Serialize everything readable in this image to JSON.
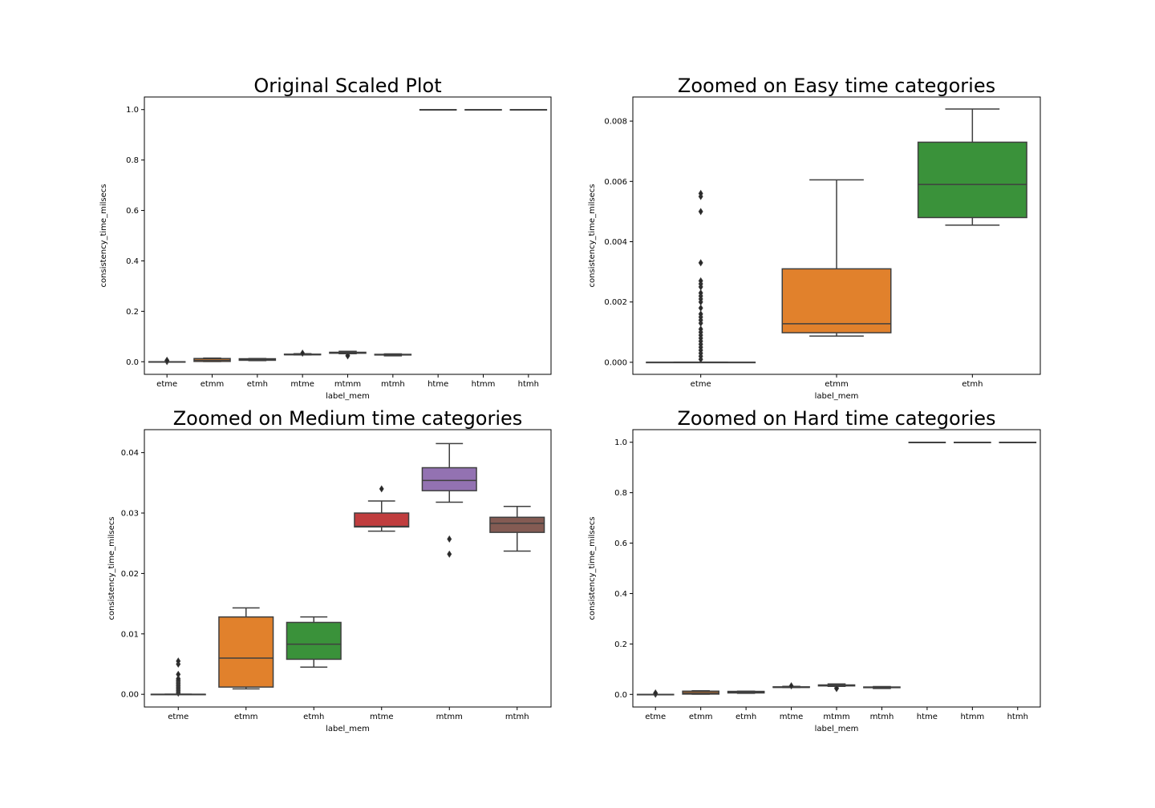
{
  "chart_data": [
    {
      "type": "box",
      "title": "Original Scaled Plot",
      "xlabel": "label_mem",
      "ylabel": "consistency_time_milsecs",
      "ylim": [
        -0.05,
        1.05
      ],
      "yticks": [
        "0.0",
        "0.2",
        "0.4",
        "0.6",
        "0.8",
        "1.0"
      ],
      "categories": [
        "etme",
        "etmm",
        "etmh",
        "mtme",
        "mtmm",
        "mtmh",
        "htme",
        "htmm",
        "htmh"
      ],
      "boxes": [
        {
          "category": "etme",
          "color": "#3274a1",
          "whisker_low": 0.0,
          "q1": 0.0,
          "median": 0.0,
          "q3": 0.0,
          "whisker_high": 0.0,
          "outliers": [
            0.001,
            0.002,
            0.003,
            0.005,
            0.0055
          ]
        },
        {
          "category": "etmm",
          "color": "#e1812c",
          "whisker_low": 0.0009,
          "q1": 0.0012,
          "median": 0.006,
          "q3": 0.0128,
          "whisker_high": 0.0143,
          "outliers": []
        },
        {
          "category": "etmh",
          "color": "#3a923a",
          "whisker_low": 0.0045,
          "q1": 0.0058,
          "median": 0.0083,
          "q3": 0.0119,
          "whisker_high": 0.0128,
          "outliers": []
        },
        {
          "category": "mtme",
          "color": "#c03d3e",
          "whisker_low": 0.027,
          "q1": 0.0277,
          "median": 0.0278,
          "q3": 0.03,
          "whisker_high": 0.032,
          "outliers": [
            0.034
          ]
        },
        {
          "category": "mtmm",
          "color": "#9372b2",
          "whisker_low": 0.0318,
          "q1": 0.0337,
          "median": 0.0354,
          "q3": 0.0375,
          "whisker_high": 0.0415,
          "outliers": [
            0.0257,
            0.0232
          ]
        },
        {
          "category": "mtmh",
          "color": "#845b53",
          "whisker_low": 0.0237,
          "q1": 0.0268,
          "median": 0.0283,
          "q3": 0.0293,
          "whisker_high": 0.0311,
          "outliers": []
        },
        {
          "category": "htme",
          "color": "#d684bd",
          "whisker_low": 1.0,
          "q1": 1.0,
          "median": 1.0,
          "q3": 1.0,
          "whisker_high": 1.0,
          "outliers": []
        },
        {
          "category": "htmm",
          "color": "#7f7f7f",
          "whisker_low": 1.0,
          "q1": 1.0,
          "median": 1.0,
          "q3": 1.0,
          "whisker_high": 1.0,
          "outliers": []
        },
        {
          "category": "htmh",
          "color": "#a9aa35",
          "whisker_low": 1.0,
          "q1": 1.0,
          "median": 1.0,
          "q3": 1.0,
          "whisker_high": 1.0,
          "outliers": []
        }
      ]
    },
    {
      "type": "box",
      "title": "Zoomed on Easy time categories",
      "xlabel": "label_mem",
      "ylabel": "consistency_time_milsecs",
      "ylim": [
        -0.0004,
        0.0088
      ],
      "yticks": [
        "0.000",
        "0.002",
        "0.004",
        "0.006",
        "0.008"
      ],
      "categories": [
        "etme",
        "etmm",
        "etmh"
      ],
      "boxes": [
        {
          "category": "etme",
          "color": "#3274a1",
          "whisker_low": 0.0,
          "q1": 0.0,
          "median": 0.0,
          "q3": 0.0,
          "whisker_high": 0.0,
          "outliers": [
            0.0001,
            0.0002,
            0.0003,
            0.0004,
            0.0005,
            0.0006,
            0.0007,
            0.0008,
            0.0009,
            0.001,
            0.0011,
            0.0013,
            0.0014,
            0.0015,
            0.0016,
            0.0018,
            0.002,
            0.0021,
            0.0022,
            0.0023,
            0.0025,
            0.0026,
            0.0027,
            0.0033,
            0.005,
            0.0055,
            0.0056
          ]
        },
        {
          "category": "etmm",
          "color": "#e1812c",
          "whisker_low": 0.00087,
          "q1": 0.00098,
          "median": 0.00128,
          "q3": 0.0031,
          "whisker_high": 0.00605,
          "outliers": []
        },
        {
          "category": "etmh",
          "color": "#3a923a",
          "whisker_low": 0.00455,
          "q1": 0.0048,
          "median": 0.0059,
          "q3": 0.0073,
          "whisker_high": 0.0084,
          "outliers": []
        }
      ]
    },
    {
      "type": "box",
      "title": "Zoomed on Medium time categories",
      "xlabel": "label_mem",
      "ylabel": "consistency_time_milsecs",
      "ylim": [
        -0.0021,
        0.0438
      ],
      "yticks": [
        "0.00",
        "0.01",
        "0.02",
        "0.03",
        "0.04"
      ],
      "categories": [
        "etme",
        "etmm",
        "etmh",
        "mtme",
        "mtmm",
        "mtmh"
      ],
      "boxes": [
        {
          "category": "etme",
          "color": "#3274a1",
          "whisker_low": 0.0,
          "q1": 0.0,
          "median": 0.0,
          "q3": 0.0,
          "whisker_high": 0.0,
          "outliers": [
            0.0002,
            0.0004,
            0.0006,
            0.0008,
            0.001,
            0.0012,
            0.0014,
            0.0016,
            0.0018,
            0.002,
            0.0022,
            0.0024,
            0.0026,
            0.0033,
            0.005,
            0.0055
          ]
        },
        {
          "category": "etmm",
          "color": "#e1812c",
          "whisker_low": 0.0009,
          "q1": 0.0012,
          "median": 0.006,
          "q3": 0.0128,
          "whisker_high": 0.0143,
          "outliers": []
        },
        {
          "category": "etmh",
          "color": "#3a923a",
          "whisker_low": 0.0045,
          "q1": 0.0058,
          "median": 0.0083,
          "q3": 0.0119,
          "whisker_high": 0.0128,
          "outliers": []
        },
        {
          "category": "mtme",
          "color": "#c03d3e",
          "whisker_low": 0.027,
          "q1": 0.0277,
          "median": 0.0278,
          "q3": 0.03,
          "whisker_high": 0.032,
          "outliers": [
            0.034
          ]
        },
        {
          "category": "mtmm",
          "color": "#9372b2",
          "whisker_low": 0.0318,
          "q1": 0.0337,
          "median": 0.0354,
          "q3": 0.0375,
          "whisker_high": 0.0415,
          "outliers": [
            0.0257,
            0.0232
          ]
        },
        {
          "category": "mtmh",
          "color": "#845b53",
          "whisker_low": 0.0237,
          "q1": 0.0268,
          "median": 0.0283,
          "q3": 0.0293,
          "whisker_high": 0.0311,
          "outliers": []
        }
      ]
    },
    {
      "type": "box",
      "title": "Zoomed on Hard time categories",
      "xlabel": "label_mem",
      "ylabel": "consistency_time_milsecs",
      "ylim": [
        -0.05,
        1.05
      ],
      "yticks": [
        "0.0",
        "0.2",
        "0.4",
        "0.6",
        "0.8",
        "1.0"
      ],
      "categories": [
        "etme",
        "etmm",
        "etmh",
        "mtme",
        "mtmm",
        "mtmh",
        "htme",
        "htmm",
        "htmh"
      ],
      "boxes": [
        {
          "category": "etme",
          "color": "#3274a1",
          "whisker_low": 0.0,
          "q1": 0.0,
          "median": 0.0,
          "q3": 0.0,
          "whisker_high": 0.0,
          "outliers": [
            0.001,
            0.002,
            0.003,
            0.005,
            0.0055
          ]
        },
        {
          "category": "etmm",
          "color": "#e1812c",
          "whisker_low": 0.0009,
          "q1": 0.0012,
          "median": 0.006,
          "q3": 0.0128,
          "whisker_high": 0.0143,
          "outliers": []
        },
        {
          "category": "etmh",
          "color": "#3a923a",
          "whisker_low": 0.0045,
          "q1": 0.0058,
          "median": 0.0083,
          "q3": 0.0119,
          "whisker_high": 0.0128,
          "outliers": []
        },
        {
          "category": "mtme",
          "color": "#c03d3e",
          "whisker_low": 0.027,
          "q1": 0.0277,
          "median": 0.0278,
          "q3": 0.03,
          "whisker_high": 0.032,
          "outliers": [
            0.034
          ]
        },
        {
          "category": "mtmm",
          "color": "#9372b2",
          "whisker_low": 0.0318,
          "q1": 0.0337,
          "median": 0.0354,
          "q3": 0.0375,
          "whisker_high": 0.0415,
          "outliers": [
            0.0257,
            0.0232
          ]
        },
        {
          "category": "mtmh",
          "color": "#845b53",
          "whisker_low": 0.0237,
          "q1": 0.0268,
          "median": 0.0283,
          "q3": 0.0293,
          "whisker_high": 0.0311,
          "outliers": []
        },
        {
          "category": "htme",
          "color": "#d684bd",
          "whisker_low": 1.0,
          "q1": 1.0,
          "median": 1.0,
          "q3": 1.0,
          "whisker_high": 1.0,
          "outliers": []
        },
        {
          "category": "htmm",
          "color": "#7f7f7f",
          "whisker_low": 1.0,
          "q1": 1.0,
          "median": 1.0,
          "q3": 1.0,
          "whisker_high": 1.0,
          "outliers": []
        },
        {
          "category": "htmh",
          "color": "#a9aa35",
          "whisker_low": 1.0,
          "q1": 1.0,
          "median": 1.0,
          "q3": 1.0,
          "whisker_high": 1.0,
          "outliers": []
        }
      ]
    }
  ]
}
